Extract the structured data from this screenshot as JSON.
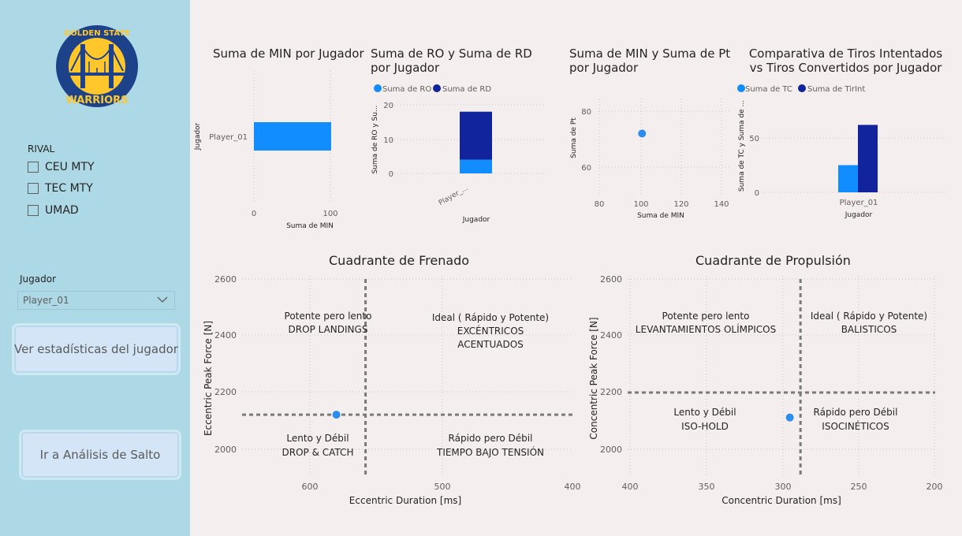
{
  "sidebar": {
    "logo": {
      "top_text": "GOLDEN STATE",
      "bottom_text": "WARRIORS",
      "colors": {
        "blue": "#1d428a",
        "gold": "#ffc72c"
      }
    },
    "rival": {
      "title": "RIVAL",
      "options": [
        "CEU MTY",
        "TEC MTY",
        "UMAD"
      ]
    },
    "jugador": {
      "title": "Jugador",
      "selected": "Player_01"
    },
    "buttons": {
      "stats": "Ver estadísticas del jugador",
      "salto": "Ir a Análisis de Salto"
    }
  },
  "charts": {
    "min": {
      "title": "Suma de MIN por Jugador",
      "ylabel": "Jugador",
      "xlabel": "Suma de MIN",
      "category": "Player_01",
      "ticks": [
        "0",
        "100"
      ]
    },
    "ro_rd": {
      "title": "Suma de RO y Suma de RD por Jugador",
      "legend": [
        "Suma de RO",
        "Suma de RD"
      ],
      "ylabel": "Suma de RO y Su...",
      "xlabel": "Jugador",
      "category": "Player_...",
      "ticks": [
        "20",
        "10",
        "0"
      ]
    },
    "min_pt": {
      "title": "Suma de MIN y Suma de Pt por Jugador",
      "ylabel": "Suma de Pt",
      "xlabel": "Suma de MIN",
      "yticks": [
        "80",
        "60"
      ],
      "xticks": [
        "80",
        "100",
        "120",
        "140"
      ]
    },
    "tiros": {
      "title": "Comparativa de Tiros Intentados vs Tiros Convertidos por Jugador",
      "legend": [
        "Suma de TC",
        "Suma de TirInt"
      ],
      "ylabel": "Suma de TC y Suma de ...",
      "xlabel": "Jugador",
      "category": "Player_01",
      "ticks": [
        "50",
        "0"
      ]
    },
    "frenado": {
      "title": "Cuadrante de Frenado",
      "ylabel": "Eccentric Peak Force [N]",
      "xlabel": "Eccentric Duration [ms]",
      "yticks": [
        "2600",
        "2400",
        "2200",
        "2000"
      ],
      "xticks": [
        "600",
        "500",
        "400"
      ],
      "quadrants": {
        "tl1": "Potente pero lento",
        "tl2": "DROP LANDINGS",
        "tr1": "Ideal ( Rápido y Potente)",
        "tr2": "EXCÉNTRICOS",
        "tr3": "ACENTUADOS",
        "bl1": "Lento y Débil",
        "bl2": "DROP & CATCH",
        "br1": "Rápido pero Débil",
        "br2": "TIEMPO BAJO TENSIÓN"
      }
    },
    "propulsion": {
      "title": "Cuadrante de Propulsión",
      "ylabel": "Concentric Peak Force [N]",
      "xlabel": "Concentric Duration [ms]",
      "yticks": [
        "2600",
        "2400",
        "2200",
        "2000"
      ],
      "xticks": [
        "400",
        "350",
        "300",
        "250",
        "200"
      ],
      "quadrants": {
        "tl1": "Potente pero lento",
        "tl2": "LEVANTAMIENTOS OLÍMPICOS",
        "tr1": "Ideal ( Rápido y Potente)",
        "tr2": "BALISTICOS",
        "bl1": "Lento y Débil",
        "bl2": "ISO-HOLD",
        "br1": "Rápido pero Débil",
        "br2": "ISOCINÉTICOS"
      }
    }
  },
  "chart_data": [
    {
      "type": "bar",
      "title": "Suma de MIN por Jugador",
      "categories": [
        "Player_01"
      ],
      "values": [
        101
      ],
      "xlim": [
        0,
        110
      ]
    },
    {
      "type": "bar",
      "title": "Suma de RO y Suma de RD por Jugador",
      "categories": [
        "Player_..."
      ],
      "series": [
        {
          "name": "Suma de RO",
          "values": [
            4
          ]
        },
        {
          "name": "Suma de RD",
          "values": [
            14
          ]
        }
      ],
      "ylim": [
        0,
        20
      ]
    },
    {
      "type": "scatter",
      "title": "Suma de MIN y Suma de Pt por Jugador",
      "x": [
        101
      ],
      "y": [
        72
      ],
      "xlim": [
        80,
        140
      ],
      "ylim": [
        55,
        85
      ]
    },
    {
      "type": "bar",
      "title": "Comparativa de Tiros Intentados vs Tiros Convertidos por Jugador",
      "categories": [
        "Player_01"
      ],
      "series": [
        {
          "name": "Suma de TC",
          "values": [
            25
          ]
        },
        {
          "name": "Suma de TirInt",
          "values": [
            62
          ]
        }
      ],
      "ylim": [
        0,
        70
      ]
    },
    {
      "type": "scatter",
      "title": "Cuadrante de Frenado",
      "x": [
        580
      ],
      "y": [
        2122
      ],
      "xlim": [
        660,
        400
      ],
      "ylim": [
        1900,
        2600
      ],
      "ref_x": 558,
      "ref_y": 2122
    },
    {
      "type": "scatter",
      "title": "Cuadrante de Propulsión",
      "x": [
        295
      ],
      "y": [
        2112
      ],
      "xlim": [
        400,
        200
      ],
      "ylim": [
        1900,
        2600
      ],
      "ref_x": 288,
      "ref_y": 2200
    }
  ],
  "colors": {
    "light_blue": "#118dff",
    "dark_blue": "#12239e",
    "point": "#2b8def"
  }
}
